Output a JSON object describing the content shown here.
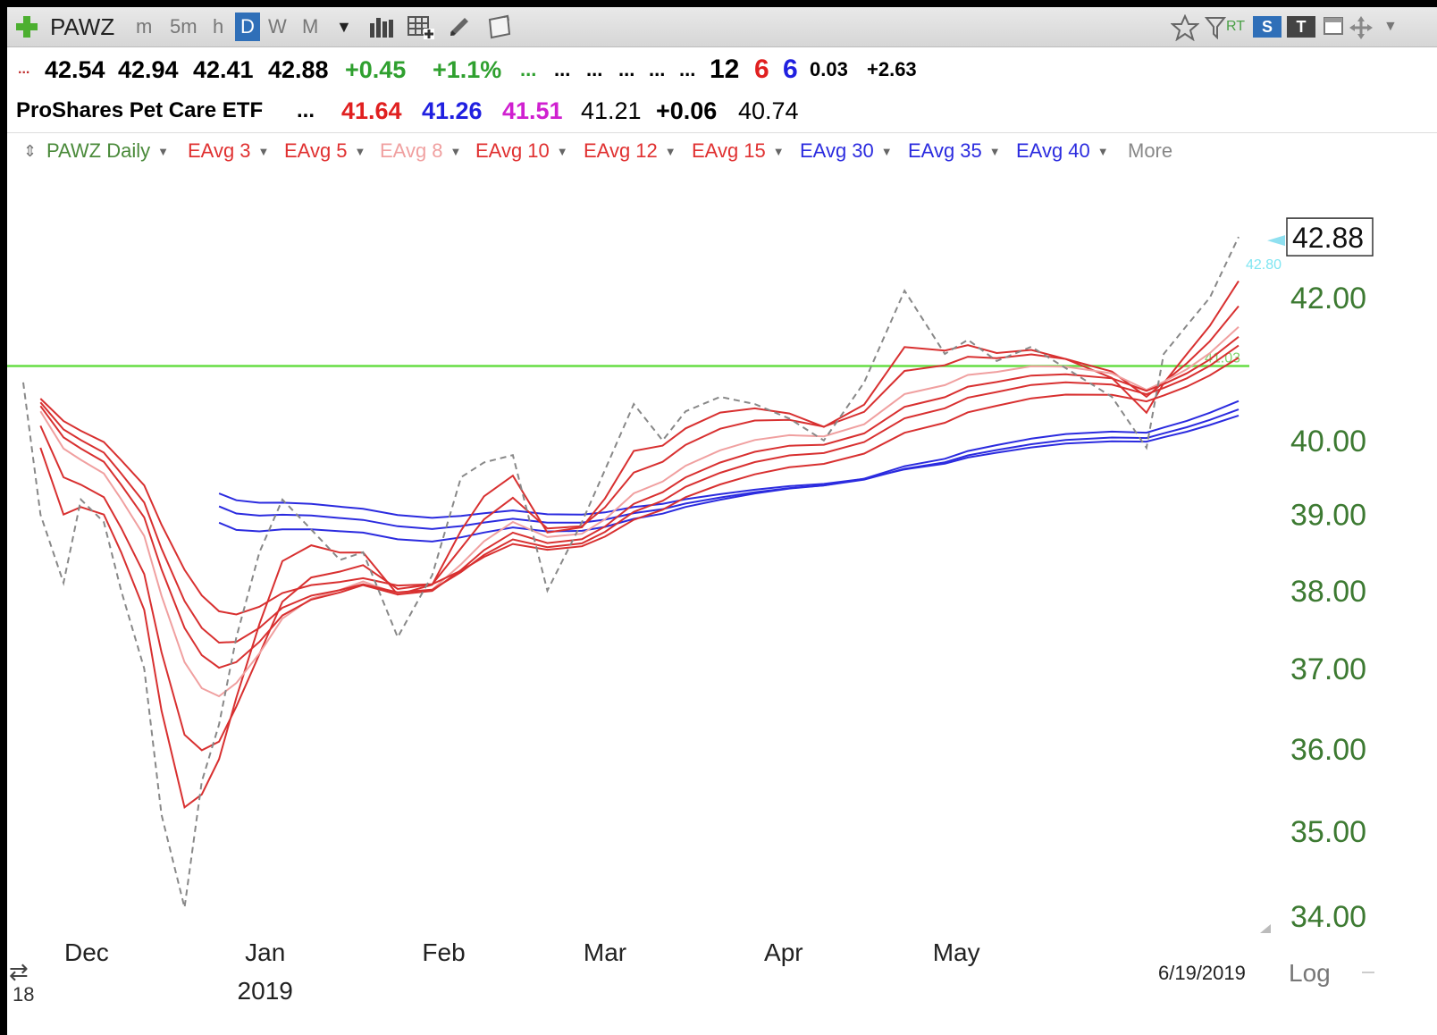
{
  "toolbar": {
    "symbol": "PAWZ",
    "intervals": [
      "m",
      "5m",
      "h",
      "D",
      "W",
      "M"
    ],
    "active_interval": "D",
    "rt_label": "RT",
    "s_label": "S",
    "t_label": "T"
  },
  "quote_line1": {
    "prefix": "...",
    "open": "42.54",
    "high": "42.94",
    "low": "42.41",
    "close": "42.88",
    "change": "+0.45",
    "change_pct": "+1.1%",
    "fillers": [
      "...",
      "...",
      "...",
      "...",
      "...",
      "..."
    ],
    "count_black": "12",
    "count_red": "6",
    "count_blue": "6",
    "val_a": "0.03",
    "val_b": "+2.63"
  },
  "quote_line2": {
    "name": "ProShares Pet Care ETF",
    "ellipsis": "...",
    "v_red": "41.64",
    "v_blue": "41.26",
    "v_magenta": "41.51",
    "v_black": "41.21",
    "v_change": "+0.06",
    "v_last": "40.74"
  },
  "studies": {
    "main": "PAWZ Daily",
    "items": [
      {
        "label": "EAvg 3",
        "color": "#e03030"
      },
      {
        "label": "EAvg 5",
        "color": "#e03030"
      },
      {
        "label": "EAvg 8",
        "color": "#f0a0a0"
      },
      {
        "label": "EAvg 10",
        "color": "#e03030"
      },
      {
        "label": "EAvg 12",
        "color": "#e03030"
      },
      {
        "label": "EAvg 15",
        "color": "#e03030"
      },
      {
        "label": "EAvg 30",
        "color": "#2b2bdf"
      },
      {
        "label": "EAvg 35",
        "color": "#2b2bdf"
      },
      {
        "label": "EAvg 40",
        "color": "#2b2bdf"
      }
    ],
    "more": "More"
  },
  "chart_data": {
    "type": "line",
    "symbol": "PAWZ",
    "scale": "log",
    "ylim": [
      34,
      43.5
    ],
    "y_ticks": [
      "42.00",
      "40.00",
      "39.00",
      "38.00",
      "37.00",
      "36.00",
      "35.00",
      "34.00"
    ],
    "last_price_label": "42.88",
    "last_price": 42.88,
    "small_label_value": "42.80",
    "hline": {
      "value": 41.03,
      "label": "41.03",
      "color": "#66dd44"
    },
    "x_labels": [
      "Dec",
      "Jan",
      "Feb",
      "Mar",
      "Apr",
      "May"
    ],
    "year_label": "2019",
    "date_label": "6/19/2019",
    "left_corner_label": "18",
    "log_label": "Log",
    "price_series": {
      "name": "PAWZ Daily",
      "style": "dashed",
      "color": "#888888",
      "x": [
        "2018-11-20",
        "2018-11-23",
        "2018-11-27",
        "2018-11-30",
        "2018-12-04",
        "2018-12-07",
        "2018-12-11",
        "2018-12-14",
        "2018-12-18",
        "2018-12-21",
        "2018-12-24",
        "2018-12-27",
        "2018-12-31",
        "2019-01-04",
        "2019-01-09",
        "2019-01-14",
        "2019-01-18",
        "2019-01-24",
        "2019-01-30",
        "2019-02-04",
        "2019-02-08",
        "2019-02-13",
        "2019-02-19",
        "2019-02-25",
        "2019-03-01",
        "2019-03-06",
        "2019-03-11",
        "2019-03-15",
        "2019-03-21",
        "2019-03-27",
        "2019-04-02",
        "2019-04-08",
        "2019-04-15",
        "2019-04-22",
        "2019-04-29",
        "2019-05-03",
        "2019-05-08",
        "2019-05-14",
        "2019-05-20",
        "2019-05-28",
        "2019-06-03",
        "2019-06-06",
        "2019-06-10",
        "2019-06-14",
        "2019-06-19"
      ],
      "values": [
        40.8,
        39.0,
        38.1,
        39.2,
        38.9,
        38.0,
        37.0,
        35.2,
        34.1,
        35.6,
        36.3,
        37.4,
        38.5,
        39.2,
        38.8,
        38.4,
        38.5,
        37.4,
        38.2,
        39.5,
        39.7,
        39.8,
        38.0,
        38.9,
        39.6,
        40.5,
        40.0,
        40.4,
        40.6,
        40.5,
        40.3,
        40.0,
        40.8,
        42.1,
        41.2,
        41.4,
        41.1,
        41.3,
        41.0,
        40.6,
        39.9,
        41.2,
        41.6,
        42.0,
        42.88
      ]
    },
    "ema_short": [
      {
        "name": "EAvg 3",
        "period": 3,
        "color": "#d83030"
      },
      {
        "name": "EAvg 5",
        "period": 5,
        "color": "#d83030"
      },
      {
        "name": "EAvg 8",
        "period": 8,
        "color": "#f0a0a0"
      },
      {
        "name": "EAvg 10",
        "period": 10,
        "color": "#d83030"
      },
      {
        "name": "EAvg 12",
        "period": 12,
        "color": "#d83030"
      },
      {
        "name": "EAvg 15",
        "period": 15,
        "color": "#d83030"
      }
    ],
    "ema_long": [
      {
        "name": "EAvg 30",
        "period": 30,
        "color": "#2b2bdf"
      },
      {
        "name": "EAvg 35",
        "period": 35,
        "color": "#2b2bdf"
      },
      {
        "name": "EAvg 40",
        "period": 40,
        "color": "#2b2bdf"
      }
    ]
  }
}
